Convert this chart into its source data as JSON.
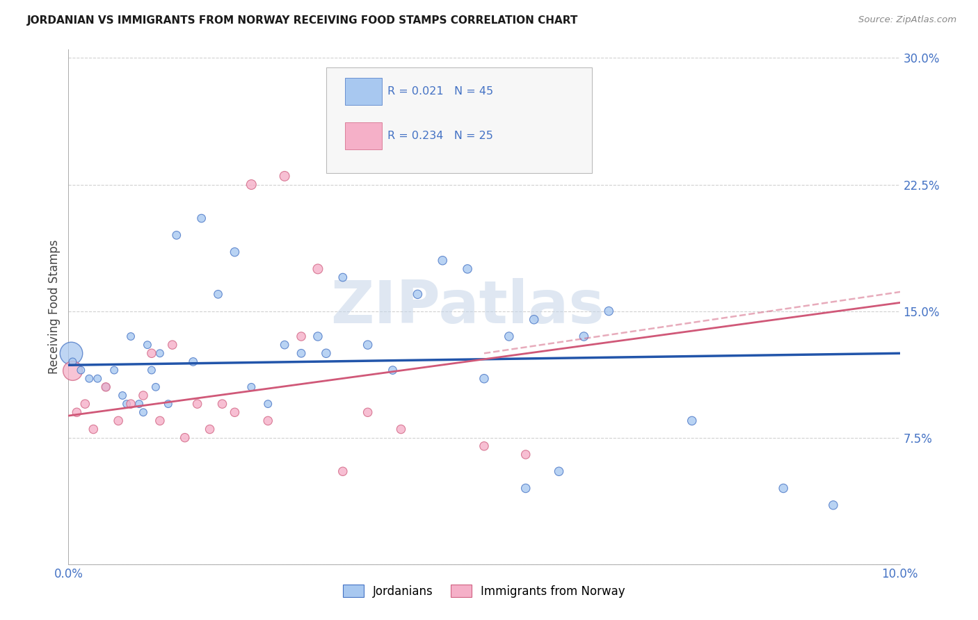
{
  "title": "JORDANIAN VS IMMIGRANTS FROM NORWAY RECEIVING FOOD STAMPS CORRELATION CHART",
  "source": "Source: ZipAtlas.com",
  "ylabel": "Receiving Food Stamps",
  "xlim": [
    0.0,
    10.0
  ],
  "ylim": [
    0.0,
    30.5
  ],
  "ytick_vals": [
    0.0,
    7.5,
    15.0,
    22.5,
    30.0
  ],
  "ytick_labels": [
    "",
    "7.5%",
    "15.0%",
    "22.5%",
    "30.0%"
  ],
  "xtick_vals": [
    0.0,
    2.5,
    5.0,
    7.5,
    10.0
  ],
  "xtick_labels": [
    "0.0%",
    "",
    "",
    "",
    "10.0%"
  ],
  "blue_R": "R = 0.021",
  "blue_N": "N = 45",
  "pink_R": "R = 0.234",
  "pink_N": "N = 25",
  "blue_face": "#A8C8F0",
  "blue_edge": "#4472C4",
  "pink_face": "#F5B0C8",
  "pink_edge": "#D06080",
  "blue_line_color": "#2255AA",
  "pink_line_color": "#D05878",
  "stat_color": "#4472C4",
  "title_color": "#1A1A1A",
  "source_color": "#888888",
  "tick_color": "#4472C4",
  "grid_color": "#CCCCCC",
  "watermark_color": "#C5D5E8",
  "label_blue": "Jordanians",
  "label_pink": "Immigrants from Norway",
  "blue_trend_x": [
    0.0,
    10.0
  ],
  "blue_trend_y": [
    11.8,
    12.5
  ],
  "pink_trend_x": [
    0.0,
    10.0
  ],
  "pink_trend_y": [
    8.8,
    15.5
  ],
  "blue_x": [
    0.05,
    0.15,
    0.25,
    0.35,
    0.45,
    0.55,
    0.65,
    0.7,
    0.75,
    0.85,
    0.9,
    0.95,
    1.0,
    1.05,
    1.1,
    1.2,
    1.3,
    1.5,
    1.6,
    1.8,
    2.0,
    2.2,
    2.4,
    2.6,
    2.8,
    3.0,
    3.1,
    3.3,
    3.6,
    3.9,
    4.2,
    4.5,
    4.8,
    5.0,
    5.3,
    5.5,
    5.6,
    5.9,
    6.2,
    6.5,
    7.5,
    8.6,
    9.2
  ],
  "blue_y": [
    12.0,
    11.5,
    11.0,
    11.0,
    10.5,
    11.5,
    10.0,
    9.5,
    13.5,
    9.5,
    9.0,
    13.0,
    11.5,
    10.5,
    12.5,
    9.5,
    19.5,
    12.0,
    20.5,
    16.0,
    18.5,
    10.5,
    9.5,
    13.0,
    12.5,
    13.5,
    12.5,
    17.0,
    13.0,
    11.5,
    16.0,
    18.0,
    17.5,
    11.0,
    13.5,
    4.5,
    14.5,
    5.5,
    13.5,
    15.0,
    8.5,
    4.5,
    3.5
  ],
  "blue_s": [
    60,
    60,
    60,
    60,
    60,
    60,
    60,
    60,
    60,
    60,
    60,
    60,
    60,
    60,
    60,
    60,
    70,
    70,
    70,
    70,
    80,
    60,
    60,
    70,
    70,
    80,
    80,
    70,
    80,
    70,
    80,
    80,
    80,
    80,
    80,
    80,
    80,
    80,
    80,
    80,
    80,
    80,
    80
  ],
  "blue_big_x": [
    0.03
  ],
  "blue_big_y": [
    12.5
  ],
  "blue_big_s": [
    550
  ],
  "pink_x": [
    0.1,
    0.2,
    0.3,
    0.45,
    0.6,
    0.75,
    0.9,
    1.0,
    1.1,
    1.25,
    1.4,
    1.55,
    1.7,
    1.85,
    2.0,
    2.2,
    2.4,
    2.6,
    2.8,
    3.0,
    3.3,
    3.6,
    4.0,
    5.0,
    5.5
  ],
  "pink_y": [
    9.0,
    9.5,
    8.0,
    10.5,
    8.5,
    9.5,
    10.0,
    12.5,
    8.5,
    13.0,
    7.5,
    9.5,
    8.0,
    9.5,
    9.0,
    22.5,
    8.5,
    23.0,
    13.5,
    17.5,
    5.5,
    9.0,
    8.0,
    7.0,
    6.5
  ],
  "pink_s": [
    80,
    80,
    80,
    80,
    80,
    80,
    80,
    80,
    80,
    80,
    80,
    80,
    80,
    80,
    80,
    100,
    80,
    100,
    80,
    100,
    80,
    80,
    80,
    80,
    80
  ],
  "pink_big_x": [
    0.05
  ],
  "pink_big_y": [
    11.5
  ],
  "pink_big_s": [
    400
  ]
}
